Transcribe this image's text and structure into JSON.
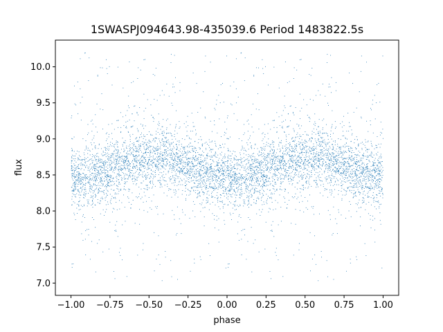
{
  "chart_data": {
    "type": "scatter",
    "title": "1SWASPJ094643.98-435039.6 Period 1483822.5s",
    "xlabel": "phase",
    "ylabel": "flux",
    "xlim": [
      -1.1,
      1.1
    ],
    "ylim": [
      6.83,
      10.37
    ],
    "xticks": [
      -1.0,
      -0.75,
      -0.5,
      -0.25,
      0.0,
      0.25,
      0.5,
      0.75,
      1.0
    ],
    "xtick_labels": [
      "−1.00",
      "−0.75",
      "−0.50",
      "−0.25",
      "0.00",
      "0.25",
      "0.50",
      "0.75",
      "1.00"
    ],
    "yticks": [
      7.0,
      7.5,
      8.0,
      8.5,
      9.0,
      9.5,
      10.0
    ],
    "ytick_labels": [
      "7.0",
      "7.5",
      "8.0",
      "8.5",
      "9.0",
      "9.5",
      "10.0"
    ],
    "grid": false,
    "marker_color": "#1f77b4",
    "series_profile": {
      "description_of_trend": "folded light curve, repeating every 1.0 in phase",
      "phase": [
        0.0,
        0.1,
        0.2,
        0.3,
        0.4,
        0.5,
        0.6,
        0.7,
        0.8,
        0.9,
        1.0
      ],
      "median_flux": [
        8.45,
        8.5,
        8.5,
        8.62,
        8.72,
        8.68,
        8.75,
        8.68,
        8.58,
        8.5,
        8.45
      ],
      "scatter_sigma": 0.2,
      "flux_min": 7.0,
      "flux_max": 10.2
    }
  }
}
